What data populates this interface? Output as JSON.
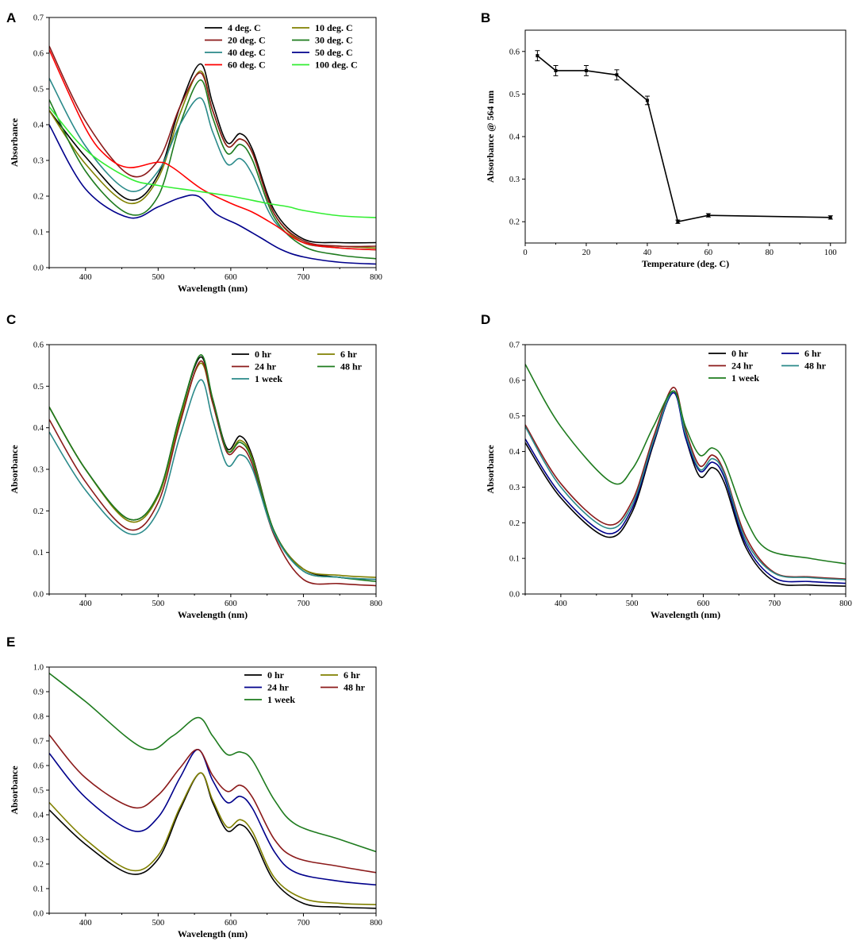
{
  "figure": {
    "panel_letters": [
      "A",
      "B",
      "C",
      "D",
      "E"
    ]
  },
  "chart_data": [
    {
      "panel": "A",
      "type": "line",
      "xlabel": "Wavelength (nm)",
      "ylabel": "Absorbance",
      "xlim": [
        350,
        800
      ],
      "ylim": [
        0,
        0.7
      ],
      "xticks": [
        400,
        500,
        600,
        700,
        800
      ],
      "yticks": [
        0.0,
        0.1,
        0.2,
        0.3,
        0.4,
        0.5,
        0.6,
        0.7
      ],
      "grid": false,
      "legend_columns": 2,
      "series": [
        {
          "name": "4 deg. C",
          "color": "#000000",
          "x": [
            350,
            400,
            460,
            500,
            530,
            558,
            575,
            595,
            613,
            630,
            660,
            700,
            750,
            800
          ],
          "y": [
            0.44,
            0.31,
            0.19,
            0.26,
            0.45,
            0.57,
            0.46,
            0.35,
            0.375,
            0.33,
            0.16,
            0.08,
            0.07,
            0.07
          ]
        },
        {
          "name": "10 deg. C",
          "color": "#808000",
          "x": [
            350,
            400,
            460,
            500,
            530,
            558,
            575,
            595,
            613,
            630,
            660,
            700,
            750,
            800
          ],
          "y": [
            0.44,
            0.29,
            0.18,
            0.25,
            0.43,
            0.55,
            0.44,
            0.34,
            0.36,
            0.32,
            0.15,
            0.07,
            0.06,
            0.055
          ]
        },
        {
          "name": "20 deg. C",
          "color": "#8b1a1a",
          "x": [
            350,
            400,
            460,
            500,
            530,
            558,
            575,
            595,
            613,
            630,
            660,
            700,
            750,
            800
          ],
          "y": [
            0.62,
            0.41,
            0.26,
            0.3,
            0.45,
            0.545,
            0.44,
            0.34,
            0.36,
            0.32,
            0.15,
            0.075,
            0.06,
            0.06
          ]
        },
        {
          "name": "30 deg. C",
          "color": "#1e7b1e",
          "x": [
            350,
            400,
            460,
            500,
            530,
            558,
            575,
            595,
            613,
            630,
            660,
            700,
            750,
            800
          ],
          "y": [
            0.47,
            0.27,
            0.15,
            0.2,
            0.4,
            0.525,
            0.42,
            0.32,
            0.345,
            0.3,
            0.14,
            0.06,
            0.035,
            0.025
          ]
        },
        {
          "name": "40 deg. C",
          "color": "#2a8a8a",
          "x": [
            350,
            400,
            460,
            500,
            530,
            558,
            575,
            595,
            613,
            630,
            660,
            700,
            750,
            800
          ],
          "y": [
            0.53,
            0.34,
            0.215,
            0.27,
            0.4,
            0.475,
            0.38,
            0.29,
            0.305,
            0.26,
            0.13,
            0.07,
            0.055,
            0.05
          ]
        },
        {
          "name": "50 deg. C",
          "color": "#00008b",
          "x": [
            350,
            400,
            460,
            500,
            530,
            555,
            580,
            610,
            640,
            670,
            700,
            750,
            800
          ],
          "y": [
            0.4,
            0.22,
            0.14,
            0.17,
            0.195,
            0.2,
            0.15,
            0.12,
            0.085,
            0.05,
            0.03,
            0.015,
            0.01
          ]
        },
        {
          "name": "60 deg. C",
          "color": "#ff0000",
          "x": [
            350,
            400,
            430,
            460,
            500,
            520,
            560,
            600,
            630,
            660,
            700,
            750,
            800
          ],
          "y": [
            0.61,
            0.39,
            0.31,
            0.28,
            0.295,
            0.28,
            0.22,
            0.18,
            0.155,
            0.12,
            0.07,
            0.055,
            0.05
          ]
        },
        {
          "name": "100 deg. C",
          "color": "#33ee33",
          "x": [
            350,
            400,
            460,
            500,
            550,
            600,
            650,
            680,
            700,
            750,
            800
          ],
          "y": [
            0.45,
            0.33,
            0.25,
            0.23,
            0.215,
            0.2,
            0.18,
            0.17,
            0.16,
            0.145,
            0.14
          ]
        }
      ]
    },
    {
      "panel": "B",
      "type": "line",
      "xlabel": "Temperature (deg. C)",
      "ylabel": "Absorbance @ 564 nm",
      "xlim": [
        0,
        105
      ],
      "ylim": [
        0.15,
        0.65
      ],
      "xticks": [
        0,
        20,
        40,
        60,
        80,
        100
      ],
      "yticks": [
        0.2,
        0.3,
        0.4,
        0.5,
        0.6
      ],
      "grid": false,
      "markers": true,
      "series": [
        {
          "name": "Absorbance @ 564 nm",
          "color": "#000000",
          "x": [
            4,
            10,
            20,
            30,
            40,
            50,
            60,
            100
          ],
          "y": [
            0.59,
            0.555,
            0.555,
            0.545,
            0.485,
            0.2,
            0.215,
            0.21
          ],
          "err": [
            0.012,
            0.012,
            0.012,
            0.012,
            0.01,
            0.004,
            0.004,
            0.004
          ]
        }
      ]
    },
    {
      "panel": "C",
      "type": "line",
      "xlabel": "Wavelength (nm)",
      "ylabel": "Absorbance",
      "xlim": [
        350,
        800
      ],
      "ylim": [
        0,
        0.6
      ],
      "xticks": [
        400,
        500,
        600,
        700,
        800
      ],
      "yticks": [
        0.0,
        0.1,
        0.2,
        0.3,
        0.4,
        0.5,
        0.6
      ],
      "grid": false,
      "legend_columns": 2,
      "series": [
        {
          "name": "0 hr",
          "color": "#000000",
          "x": [
            350,
            400,
            460,
            500,
            530,
            558,
            575,
            595,
            613,
            630,
            660,
            700,
            750,
            800
          ],
          "y": [
            0.45,
            0.3,
            0.18,
            0.24,
            0.43,
            0.57,
            0.47,
            0.35,
            0.38,
            0.33,
            0.15,
            0.06,
            0.04,
            0.035
          ]
        },
        {
          "name": "6 hr",
          "color": "#808000",
          "x": [
            350,
            400,
            460,
            500,
            530,
            558,
            575,
            595,
            613,
            630,
            660,
            700,
            750,
            800
          ],
          "y": [
            0.45,
            0.3,
            0.175,
            0.235,
            0.42,
            0.555,
            0.46,
            0.345,
            0.37,
            0.325,
            0.15,
            0.06,
            0.045,
            0.04
          ]
        },
        {
          "name": "24 hr",
          "color": "#8b1a1a",
          "x": [
            350,
            400,
            460,
            500,
            530,
            558,
            575,
            595,
            613,
            630,
            660,
            700,
            750,
            800
          ],
          "y": [
            0.42,
            0.27,
            0.155,
            0.22,
            0.41,
            0.56,
            0.46,
            0.34,
            0.355,
            0.31,
            0.14,
            0.035,
            0.025,
            0.02
          ]
        },
        {
          "name": "48 hr",
          "color": "#1e7b1e",
          "x": [
            350,
            400,
            460,
            500,
            530,
            558,
            575,
            595,
            613,
            630,
            660,
            700,
            750,
            800
          ],
          "y": [
            0.45,
            0.3,
            0.18,
            0.24,
            0.43,
            0.575,
            0.47,
            0.345,
            0.365,
            0.32,
            0.15,
            0.055,
            0.04,
            0.03
          ]
        },
        {
          "name": "1 week",
          "color": "#2a8a8a",
          "x": [
            350,
            400,
            460,
            500,
            530,
            558,
            575,
            595,
            613,
            630,
            660,
            700,
            750,
            800
          ],
          "y": [
            0.39,
            0.25,
            0.145,
            0.2,
            0.38,
            0.515,
            0.42,
            0.31,
            0.335,
            0.3,
            0.145,
            0.055,
            0.04,
            0.035
          ]
        }
      ]
    },
    {
      "panel": "D",
      "type": "line",
      "xlabel": "Wavelength (nm)",
      "ylabel": "Absorbance",
      "xlim": [
        350,
        800
      ],
      "ylim": [
        0,
        0.7
      ],
      "xticks": [
        400,
        500,
        600,
        700,
        800
      ],
      "yticks": [
        0.0,
        0.1,
        0.2,
        0.3,
        0.4,
        0.5,
        0.6,
        0.7
      ],
      "grid": false,
      "legend_columns": 2,
      "series": [
        {
          "name": "0 hr",
          "color": "#000000",
          "x": [
            350,
            400,
            465,
            500,
            530,
            558,
            575,
            595,
            613,
            630,
            660,
            700,
            750,
            800
          ],
          "y": [
            0.425,
            0.27,
            0.16,
            0.23,
            0.42,
            0.57,
            0.44,
            0.33,
            0.355,
            0.31,
            0.13,
            0.035,
            0.025,
            0.022
          ]
        },
        {
          "name": "6 hr",
          "color": "#00008b",
          "x": [
            350,
            400,
            465,
            500,
            530,
            558,
            575,
            595,
            613,
            630,
            660,
            700,
            750,
            800
          ],
          "y": [
            0.435,
            0.28,
            0.17,
            0.24,
            0.425,
            0.565,
            0.44,
            0.345,
            0.37,
            0.325,
            0.14,
            0.045,
            0.035,
            0.03
          ]
        },
        {
          "name": "24 hr",
          "color": "#8b1a1a",
          "x": [
            350,
            400,
            465,
            500,
            530,
            558,
            575,
            595,
            613,
            630,
            660,
            700,
            750,
            800
          ],
          "y": [
            0.475,
            0.31,
            0.195,
            0.26,
            0.44,
            0.58,
            0.46,
            0.36,
            0.39,
            0.34,
            0.16,
            0.06,
            0.048,
            0.042
          ]
        },
        {
          "name": "48 hr",
          "color": "#2a8a8a",
          "x": [
            350,
            400,
            465,
            500,
            530,
            558,
            575,
            595,
            613,
            630,
            660,
            700,
            750,
            800
          ],
          "y": [
            0.47,
            0.3,
            0.185,
            0.25,
            0.43,
            0.57,
            0.45,
            0.35,
            0.38,
            0.335,
            0.15,
            0.058,
            0.046,
            0.04
          ]
        },
        {
          "name": "1 week",
          "color": "#1e7b1e",
          "x": [
            350,
            400,
            470,
            500,
            530,
            558,
            575,
            595,
            613,
            630,
            660,
            690,
            750,
            800
          ],
          "y": [
            0.645,
            0.47,
            0.315,
            0.35,
            0.47,
            0.57,
            0.47,
            0.39,
            0.41,
            0.37,
            0.21,
            0.125,
            0.1,
            0.085
          ]
        }
      ]
    },
    {
      "panel": "E",
      "type": "line",
      "xlabel": "Wavelength (nm)",
      "ylabel": "Absorbance",
      "xlim": [
        350,
        800
      ],
      "ylim": [
        0,
        1.0
      ],
      "xticks": [
        400,
        500,
        600,
        700,
        800
      ],
      "yticks": [
        0.0,
        0.1,
        0.2,
        0.3,
        0.4,
        0.5,
        0.6,
        0.7,
        0.8,
        0.9,
        1.0
      ],
      "grid": false,
      "legend_columns": 2,
      "series": [
        {
          "name": "0 hr",
          "color": "#000000",
          "x": [
            350,
            400,
            462,
            500,
            530,
            558,
            575,
            595,
            613,
            630,
            660,
            700,
            750,
            800
          ],
          "y": [
            0.42,
            0.28,
            0.16,
            0.22,
            0.42,
            0.57,
            0.45,
            0.335,
            0.36,
            0.31,
            0.13,
            0.04,
            0.025,
            0.02
          ]
        },
        {
          "name": "6 hr",
          "color": "#808000",
          "x": [
            350,
            400,
            462,
            500,
            530,
            558,
            575,
            595,
            613,
            630,
            660,
            700,
            750,
            800
          ],
          "y": [
            0.45,
            0.3,
            0.175,
            0.235,
            0.43,
            0.57,
            0.46,
            0.35,
            0.38,
            0.33,
            0.145,
            0.06,
            0.04,
            0.035
          ]
        },
        {
          "name": "24 hr",
          "color": "#00008b",
          "x": [
            350,
            400,
            465,
            500,
            530,
            555,
            575,
            595,
            613,
            630,
            660,
            690,
            750,
            800
          ],
          "y": [
            0.65,
            0.47,
            0.335,
            0.39,
            0.55,
            0.665,
            0.54,
            0.45,
            0.475,
            0.425,
            0.25,
            0.165,
            0.13,
            0.115
          ]
        },
        {
          "name": "48 hr",
          "color": "#8b1a1a",
          "x": [
            350,
            400,
            465,
            500,
            530,
            555,
            575,
            595,
            613,
            630,
            660,
            690,
            750,
            800
          ],
          "y": [
            0.725,
            0.55,
            0.43,
            0.48,
            0.59,
            0.665,
            0.56,
            0.495,
            0.52,
            0.47,
            0.3,
            0.225,
            0.19,
            0.165
          ]
        },
        {
          "name": "1 week",
          "color": "#1e7b1e",
          "x": [
            350,
            400,
            480,
            520,
            555,
            575,
            595,
            613,
            630,
            660,
            690,
            750,
            800
          ],
          "y": [
            0.975,
            0.86,
            0.67,
            0.72,
            0.795,
            0.72,
            0.645,
            0.655,
            0.62,
            0.46,
            0.36,
            0.3,
            0.25
          ]
        }
      ]
    }
  ]
}
